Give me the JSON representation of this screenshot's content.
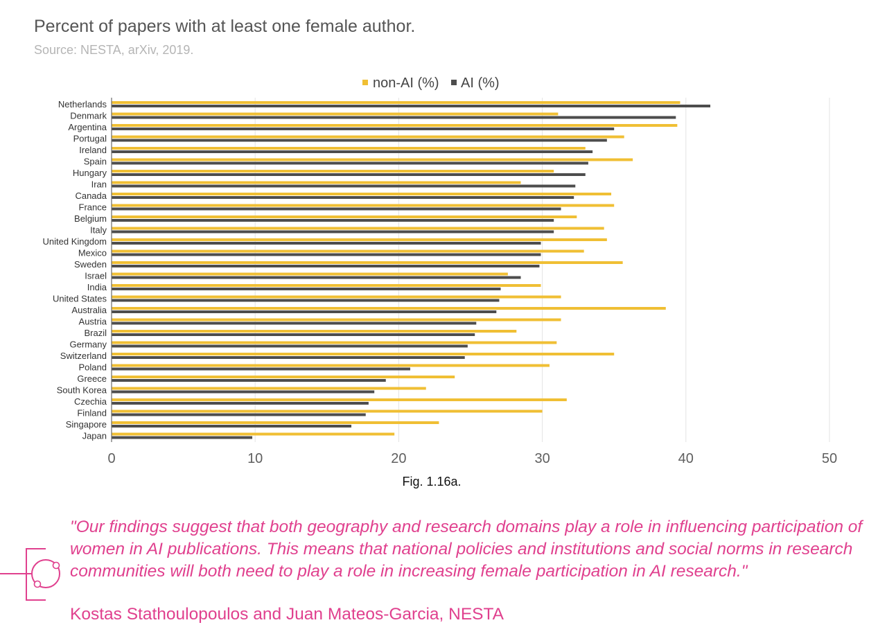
{
  "header": {
    "title": "Percent of papers with at least one female author.",
    "subtitle": "Source: NESTA, arXiv, 2019."
  },
  "colors": {
    "non_ai": "#f0bf34",
    "ai": "#4d4d4d",
    "quote": "#e0408e"
  },
  "chart_data": {
    "type": "bar",
    "orientation": "horizontal",
    "title": "Percent of papers with at least one female author.",
    "subtitle": "Source: NESTA, arXiv, 2019.",
    "categories": [
      "Netherlands",
      "Denmark",
      "Argentina",
      "Portugal",
      "Ireland",
      "Spain",
      "Hungary",
      "Iran",
      "Canada",
      "France",
      "Belgium",
      "Italy",
      "United Kingdom",
      "Mexico",
      "Sweden",
      "Israel",
      "India",
      "United States",
      "Australia",
      "Austria",
      "Brazil",
      "Germany",
      "Switzerland",
      "Poland",
      "Greece",
      "South Korea",
      "Czechia",
      "Finland",
      "Singapore",
      "Japan"
    ],
    "series": [
      {
        "name": "non-AI (%)",
        "values": [
          39.6,
          31.1,
          39.4,
          35.7,
          33.0,
          36.3,
          30.8,
          28.5,
          34.8,
          35.0,
          32.4,
          34.3,
          34.5,
          32.9,
          35.6,
          27.6,
          29.9,
          31.3,
          38.6,
          31.3,
          28.2,
          31.0,
          35.0,
          30.5,
          23.9,
          21.9,
          31.7,
          30.0,
          22.8,
          19.7
        ]
      },
      {
        "name": "AI (%)",
        "values": [
          41.7,
          39.3,
          35.0,
          34.5,
          33.5,
          33.2,
          33.0,
          32.3,
          32.2,
          31.3,
          30.8,
          30.8,
          29.9,
          29.9,
          29.8,
          28.5,
          27.1,
          27.0,
          26.8,
          25.4,
          25.3,
          24.8,
          24.6,
          20.8,
          19.1,
          18.3,
          17.9,
          17.7,
          16.7,
          9.8
        ]
      }
    ],
    "xlim": [
      0,
      50
    ],
    "xticks": [
      0,
      10,
      20,
      30,
      40,
      50
    ],
    "grid": true,
    "legend": "top-center"
  },
  "figure": {
    "caption": "Fig. 1.16a."
  },
  "quote": {
    "text": "\"Our findings suggest that both geography and research domains play a role in influencing participation of women in AI publications. This means that national policies and institutions and social norms in research communities will both need to play a role in increasing female participation in AI research.\"",
    "attribution": "Kostas Stathoulopoulos and Juan Mateos-Garcia, NESTA"
  }
}
